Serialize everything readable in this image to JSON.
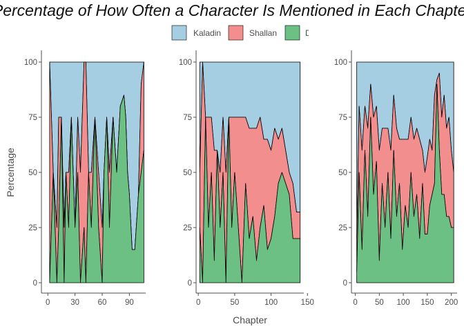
{
  "chart_data": {
    "type": "area",
    "title": "Percentage of How Often a Character Is Mentioned in Each Chapter",
    "xlabel": "Chapter",
    "ylabel": "Percentage",
    "legend": {
      "placement": "top",
      "entries": [
        "Kaladin",
        "Shallan",
        "Dalinar"
      ]
    },
    "colors": {
      "Kaladin": "#a6cee3",
      "Shallan": "#f28e8e",
      "Dalinar": "#6cc083"
    },
    "y_ticks": [
      0,
      25,
      50,
      75,
      100
    ],
    "ylim": [
      0,
      100
    ],
    "panels": [
      {
        "xlim": [
          0,
          110
        ],
        "x_ticks": [
          0,
          30,
          60,
          90
        ],
        "x": [
          2,
          6,
          10,
          12,
          15,
          18,
          20,
          23,
          26,
          30,
          33,
          36,
          40,
          42,
          45,
          48,
          52,
          56,
          60,
          62,
          65,
          68,
          72,
          76,
          80,
          84,
          86,
          88,
          90,
          93,
          96,
          100,
          103,
          106
        ],
        "dalinar": [
          0,
          50,
          0,
          25,
          75,
          0,
          50,
          25,
          75,
          25,
          50,
          0,
          25,
          0,
          50,
          25,
          75,
          25,
          0,
          50,
          75,
          25,
          75,
          50,
          80,
          85,
          75,
          50,
          40,
          15,
          15,
          40,
          50,
          60
        ],
        "shallan": [
          100,
          0,
          25,
          50,
          0,
          25,
          0,
          25,
          0,
          0,
          25,
          50,
          75,
          100,
          0,
          25,
          0,
          25,
          25,
          0,
          0,
          25,
          0,
          0,
          0,
          0,
          0,
          0,
          0,
          0,
          0,
          0,
          40,
          40
        ]
      },
      {
        "xlim": [
          0,
          145
        ],
        "x_ticks": [
          0,
          50,
          100,
          150
        ],
        "x": [
          2,
          6,
          10,
          14,
          18,
          22,
          26,
          30,
          34,
          38,
          42,
          46,
          50,
          55,
          60,
          65,
          70,
          75,
          80,
          85,
          90,
          95,
          100,
          105,
          110,
          115,
          120,
          125,
          130,
          135,
          140
        ],
        "dalinar": [
          25,
          0,
          75,
          25,
          50,
          10,
          60,
          25,
          50,
          0,
          75,
          25,
          50,
          25,
          0,
          45,
          20,
          30,
          10,
          25,
          35,
          15,
          20,
          30,
          45,
          50,
          45,
          40,
          20,
          20,
          20
        ],
        "shallan": [
          25,
          100,
          0,
          50,
          25,
          50,
          0,
          25,
          25,
          50,
          0,
          50,
          25,
          50,
          75,
          30,
          50,
          40,
          60,
          50,
          30,
          50,
          40,
          40,
          20,
          20,
          15,
          10,
          25,
          12,
          12
        ]
      },
      {
        "xlim": [
          0,
          210
        ],
        "x_ticks": [
          0,
          50,
          100,
          150,
          200
        ],
        "x": [
          3,
          8,
          14,
          20,
          26,
          32,
          38,
          44,
          50,
          56,
          62,
          68,
          74,
          80,
          86,
          92,
          98,
          104,
          110,
          116,
          122,
          128,
          134,
          140,
          145,
          150,
          155,
          160,
          165,
          170,
          175,
          180,
          185,
          190,
          195,
          200,
          205
        ],
        "dalinar": [
          5,
          50,
          15,
          60,
          30,
          75,
          40,
          55,
          10,
          45,
          25,
          50,
          20,
          60,
          30,
          45,
          15,
          35,
          25,
          50,
          30,
          40,
          20,
          45,
          22,
          22,
          35,
          40,
          45,
          90,
          60,
          40,
          40,
          30,
          30,
          25,
          25
        ],
        "shallan": [
          15,
          30,
          45,
          20,
          40,
          15,
          35,
          25,
          50,
          25,
          45,
          20,
          40,
          25,
          40,
          20,
          50,
          30,
          40,
          25,
          35,
          30,
          45,
          15,
          28,
          35,
          30,
          20,
          40,
          2,
          35,
          35,
          45,
          40,
          45,
          35,
          25
        ]
      }
    ]
  }
}
